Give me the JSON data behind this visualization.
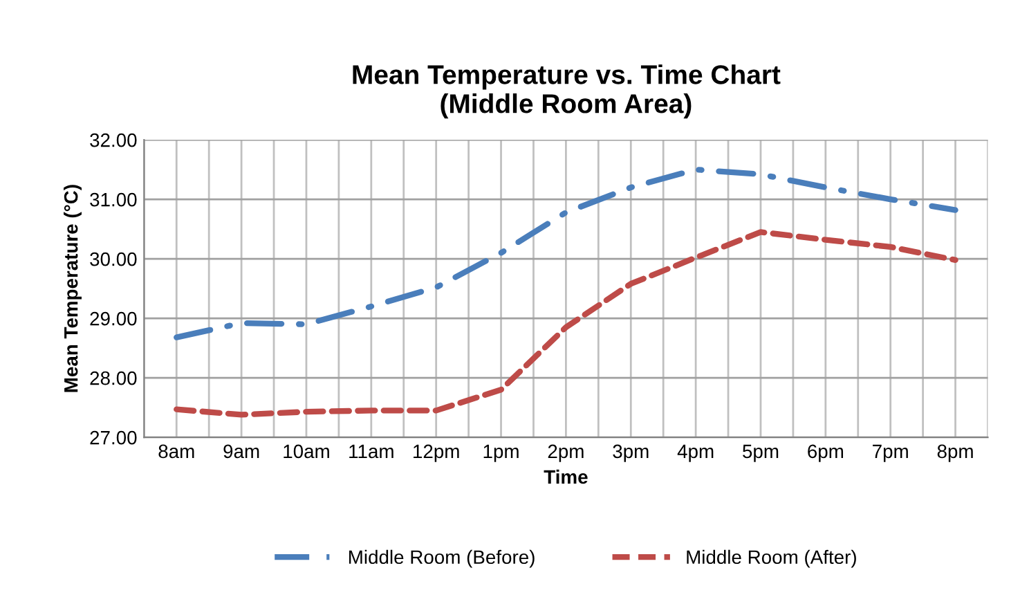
{
  "chart_data": {
    "type": "line",
    "title": "Mean Temperature vs. Time Chart\n(Middle Room Area)",
    "xlabel": "Time",
    "ylabel": "Mean Temperature (°C)",
    "categories": [
      "8am",
      "9am",
      "10am",
      "11am",
      "12pm",
      "1pm",
      "2pm",
      "3pm",
      "4pm",
      "5pm",
      "6pm",
      "7pm",
      "8pm"
    ],
    "series": [
      {
        "name": "Middle Room (Before)",
        "color": "#4a7ebb",
        "line_style": "dashdot",
        "values": [
          28.68,
          28.92,
          28.9,
          29.2,
          29.52,
          30.1,
          30.78,
          31.2,
          31.5,
          31.42,
          31.2,
          31.0,
          30.82
        ]
      },
      {
        "name": "Middle Room (After)",
        "color": "#be4b48",
        "line_style": "dashed",
        "values": [
          27.47,
          27.38,
          27.43,
          27.45,
          27.45,
          27.8,
          28.85,
          29.58,
          30.02,
          30.45,
          30.32,
          30.2,
          29.98
        ]
      }
    ],
    "ylim": [
      27,
      32
    ],
    "yticks": [
      {
        "value": 27,
        "label": "27.00"
      },
      {
        "value": 28,
        "label": "28.00"
      },
      {
        "value": 29,
        "label": "29.00"
      },
      {
        "value": 30,
        "label": "30.00"
      },
      {
        "value": 31,
        "label": "31.00"
      },
      {
        "value": 32,
        "label": "32.00"
      }
    ],
    "grid": true,
    "legend": "bottom",
    "marker": "none"
  }
}
